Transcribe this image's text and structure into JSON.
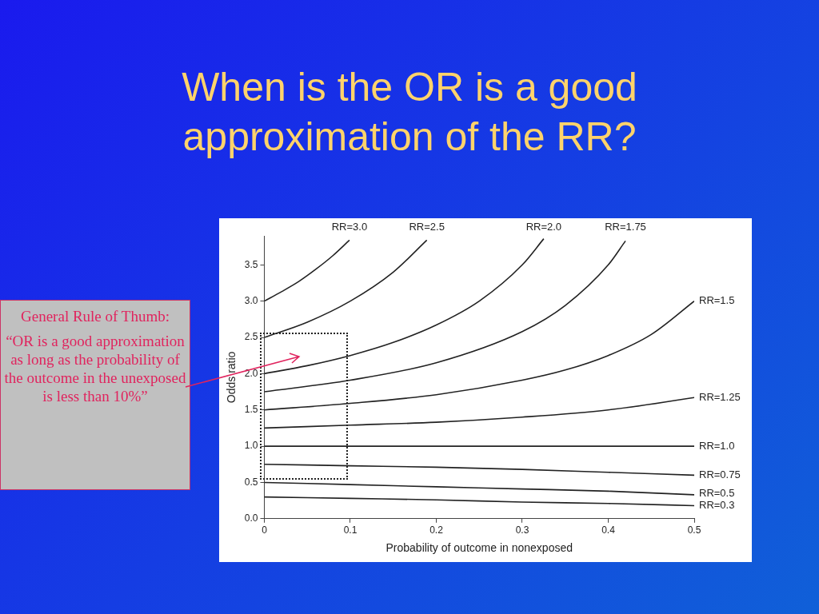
{
  "chart_data": {
    "type": "line",
    "title": "When is the OR is a good approximation of the RR?",
    "xlabel": "Probability of outcome in nonexposed",
    "ylabel": "Odds ratio",
    "xlim": [
      0,
      0.5
    ],
    "xticks": [
      0,
      0.1,
      0.2,
      0.3,
      0.4,
      0.5
    ],
    "ylim": [
      0,
      3.9
    ],
    "yticks": [
      {
        "value": 0,
        "label": "0.0"
      },
      0.5,
      {
        "value": 1,
        "label": "1.0"
      },
      1.5,
      {
        "value": 2,
        "label": "2.0"
      },
      2.5,
      {
        "value": 3,
        "label": "3.0"
      },
      3.5
    ],
    "grid": false,
    "legend": false,
    "marker": "none",
    "line_style": "solid",
    "annotations": [
      "General Rule of Thumb:",
      "“OR is a good approximation as long as the probability of the outcome in the unexposed is less than 10%”"
    ],
    "series": [
      {
        "name": "RR=3.0",
        "color": "#222222",
        "x": [
          0,
          0.02,
          0.04,
          0.06,
          0.08,
          0.099
        ],
        "values": [
          3.0,
          3.13,
          3.27,
          3.44,
          3.63,
          3.84
        ]
      },
      {
        "name": "RR=2.5",
        "color": "#222222",
        "x": [
          0,
          0.05,
          0.1,
          0.15,
          0.189
        ],
        "values": [
          2.5,
          2.71,
          3.0,
          3.4,
          3.84
        ]
      },
      {
        "name": "RR=2.0",
        "color": "#222222",
        "x": [
          0,
          0.05,
          0.1,
          0.15,
          0.2,
          0.25,
          0.3,
          0.325
        ],
        "values": [
          2.0,
          2.11,
          2.25,
          2.43,
          2.67,
          3.0,
          3.5,
          3.86
        ]
      },
      {
        "name": "RR=1.75",
        "color": "#222222",
        "x": [
          0,
          0.1,
          0.2,
          0.3,
          0.35,
          0.4,
          0.42
        ],
        "values": [
          1.75,
          1.91,
          2.15,
          2.58,
          2.94,
          3.5,
          3.83
        ]
      },
      {
        "name": "RR=1.5",
        "color": "#222222",
        "x": [
          0,
          0.1,
          0.2,
          0.3,
          0.35,
          0.4,
          0.45,
          0.5
        ],
        "values": [
          1.5,
          1.59,
          1.71,
          1.91,
          2.05,
          2.25,
          2.54,
          3.0
        ]
      },
      {
        "name": "RR=1.25",
        "color": "#222222",
        "x": [
          0,
          0.1,
          0.2,
          0.3,
          0.4,
          0.5
        ],
        "values": [
          1.25,
          1.29,
          1.33,
          1.4,
          1.5,
          1.67
        ]
      },
      {
        "name": "RR=1.0",
        "color": "#222222",
        "x": [
          0,
          0.5
        ],
        "values": [
          1.0,
          1.0
        ]
      },
      {
        "name": "RR=0.75",
        "color": "#222222",
        "x": [
          0,
          0.1,
          0.2,
          0.3,
          0.4,
          0.5
        ],
        "values": [
          0.75,
          0.73,
          0.71,
          0.68,
          0.64,
          0.6
        ]
      },
      {
        "name": "RR=0.5",
        "color": "#222222",
        "x": [
          0,
          0.1,
          0.2,
          0.3,
          0.4,
          0.5
        ],
        "values": [
          0.5,
          0.47,
          0.44,
          0.41,
          0.38,
          0.33
        ]
      },
      {
        "name": "RR=0.3",
        "color": "#222222",
        "x": [
          0,
          0.1,
          0.2,
          0.3,
          0.4,
          0.5
        ],
        "values": [
          0.3,
          0.28,
          0.26,
          0.23,
          0.21,
          0.18
        ]
      }
    ]
  }
}
